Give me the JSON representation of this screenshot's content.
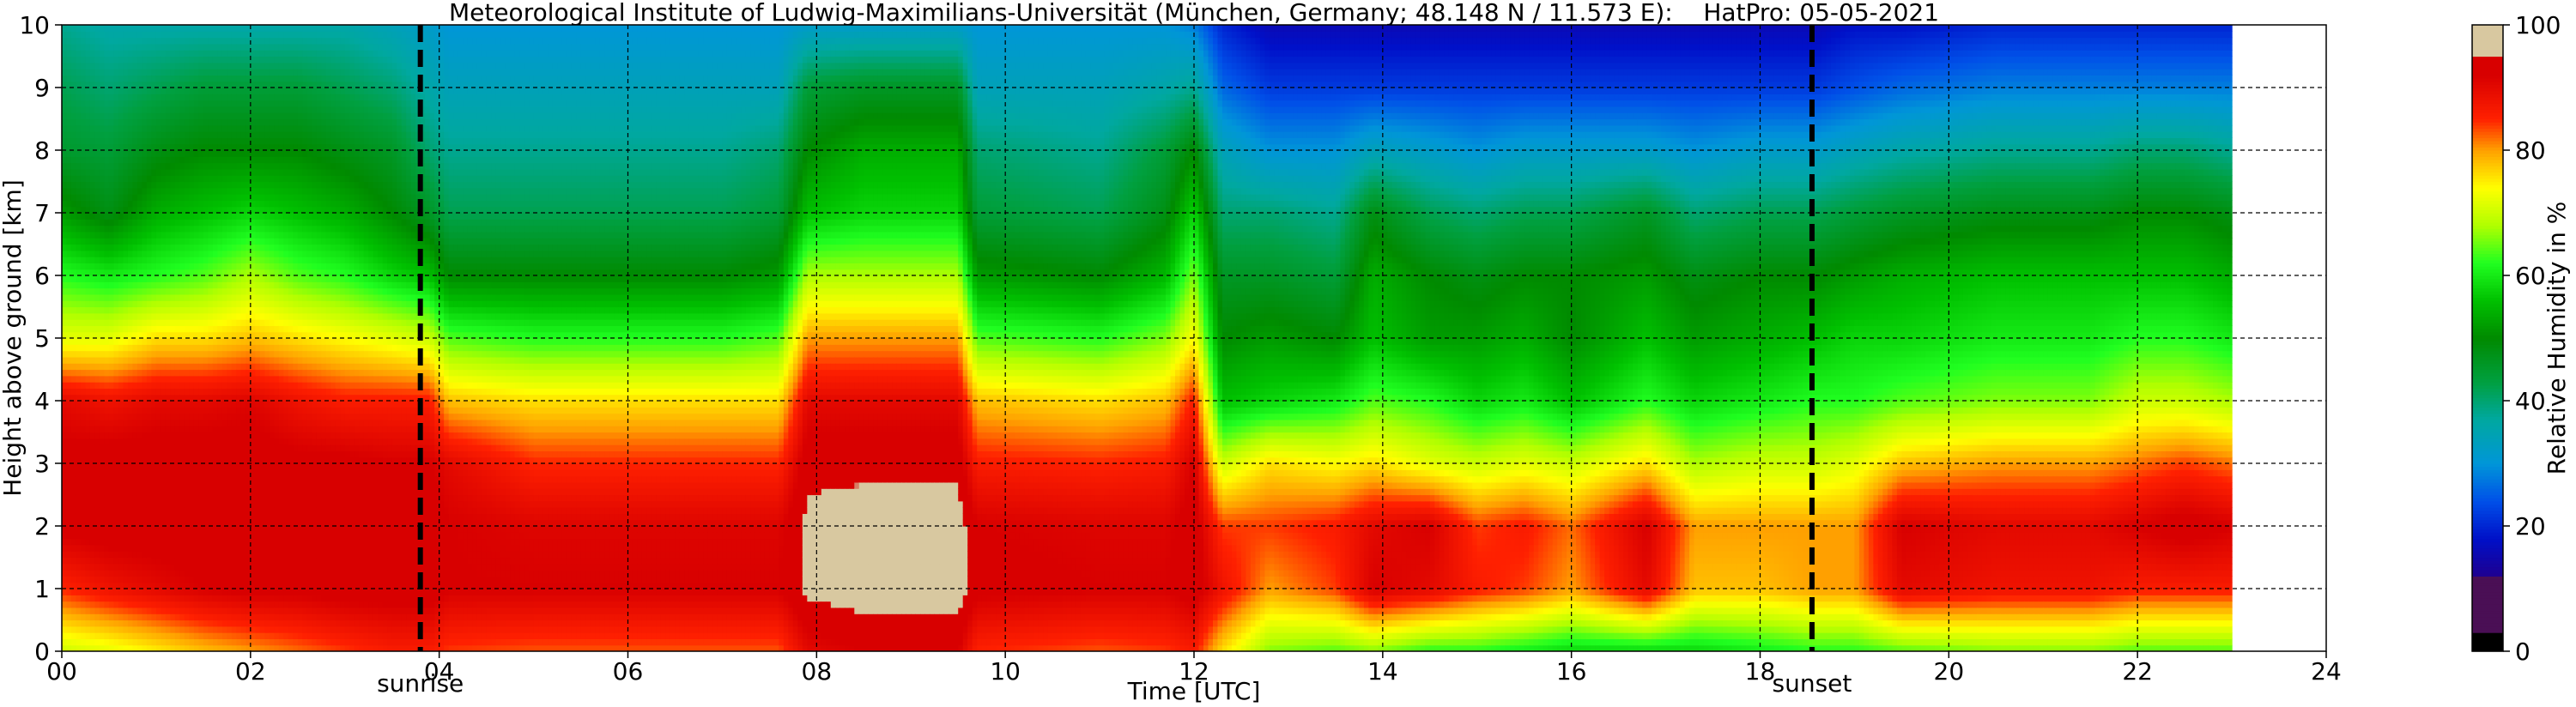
{
  "chart_data": {
    "type": "heatmap",
    "title": "Meteorological Institute of Ludwig-Maximilians-Universität (München, Germany; 48.148 N / 11.573 E):    HatPro: 05-05-2021",
    "xlabel": "Time [UTC]",
    "ylabel": "Height above ground [km]",
    "xlim": [
      0,
      24
    ],
    "ylim": [
      0,
      10
    ],
    "x_ticks": [
      "00",
      "02",
      "04",
      "06",
      "08",
      "10",
      "12",
      "14",
      "16",
      "18",
      "20",
      "22",
      "24"
    ],
    "y_ticks": [
      "0",
      "1",
      "2",
      "3",
      "4",
      "5",
      "6",
      "7",
      "8",
      "9",
      "10"
    ],
    "grid": true,
    "data_end_time": 23.0,
    "markers": [
      {
        "label": "sunrise",
        "time": 3.8
      },
      {
        "label": "sunset",
        "time": 18.55
      }
    ],
    "colorbar": {
      "label": "Relative Humidity in %",
      "ticks": [
        "0",
        "20",
        "40",
        "60",
        "80",
        "100"
      ],
      "range": [
        0,
        100
      ],
      "colors": [
        {
          "v": 0,
          "c": "#000000"
        },
        {
          "v": 3,
          "c": "#000000"
        },
        {
          "v": 3.01,
          "c": "#4a0f55"
        },
        {
          "v": 12,
          "c": "#4a0f55"
        },
        {
          "v": 12.01,
          "c": "#1e0090"
        },
        {
          "v": 18,
          "c": "#0010c8"
        },
        {
          "v": 24,
          "c": "#0050e8"
        },
        {
          "v": 30,
          "c": "#0096d8"
        },
        {
          "v": 37,
          "c": "#00a8a0"
        },
        {
          "v": 43,
          "c": "#00a040"
        },
        {
          "v": 50,
          "c": "#008a00"
        },
        {
          "v": 56,
          "c": "#00c000"
        },
        {
          "v": 62,
          "c": "#20ff20"
        },
        {
          "v": 68,
          "c": "#b0ff00"
        },
        {
          "v": 74,
          "c": "#ffff00"
        },
        {
          "v": 80,
          "c": "#ffa000"
        },
        {
          "v": 85,
          "c": "#ff2000"
        },
        {
          "v": 92,
          "c": "#d80000"
        },
        {
          "v": 95,
          "c": "#d80000"
        },
        {
          "v": 95.01,
          "c": "#d8c8a0"
        },
        {
          "v": 100,
          "c": "#d8c8a0"
        }
      ]
    },
    "time_columns": [
      {
        "t": 0.0,
        "rh": [
          70,
          85,
          93,
          93,
          90,
          72,
          62,
          52,
          45,
          42,
          38
        ]
      },
      {
        "t": 0.5,
        "rh": [
          72,
          88,
          94,
          94,
          88,
          72,
          60,
          48,
          44,
          40,
          36
        ]
      },
      {
        "t": 1.0,
        "rh": [
          75,
          90,
          94,
          94,
          90,
          76,
          62,
          54,
          48,
          42,
          36
        ]
      },
      {
        "t": 1.5,
        "rh": [
          78,
          92,
          94,
          94,
          90,
          76,
          64,
          56,
          50,
          44,
          36
        ]
      },
      {
        "t": 2.0,
        "rh": [
          80,
          93,
          94,
          94,
          91,
          78,
          68,
          58,
          50,
          44,
          36
        ]
      },
      {
        "t": 2.5,
        "rh": [
          82,
          93,
          94,
          93,
          88,
          76,
          64,
          56,
          50,
          44,
          36
        ]
      },
      {
        "t": 3.0,
        "rh": [
          84,
          94,
          95,
          93,
          86,
          74,
          62,
          54,
          48,
          42,
          36
        ]
      },
      {
        "t": 3.5,
        "rh": [
          86,
          94,
          95,
          92,
          86,
          72,
          58,
          50,
          46,
          40,
          34
        ]
      },
      {
        "t": 3.9,
        "rh": [
          86,
          94,
          94,
          92,
          86,
          70,
          56,
          46,
          40,
          36,
          32
        ]
      },
      {
        "t": 4.1,
        "rh": [
          84,
          92,
          92,
          90,
          78,
          64,
          50,
          42,
          38,
          34,
          30
        ]
      },
      {
        "t": 5.0,
        "rh": [
          83,
          92,
          91,
          85,
          76,
          62,
          50,
          42,
          38,
          34,
          30
        ]
      },
      {
        "t": 6.0,
        "rh": [
          83,
          92,
          91,
          85,
          76,
          62,
          50,
          42,
          38,
          34,
          30
        ]
      },
      {
        "t": 7.0,
        "rh": [
          83,
          92,
          91,
          85,
          76,
          62,
          50,
          42,
          38,
          34,
          30
        ]
      },
      {
        "t": 7.6,
        "rh": [
          83,
          92,
          91,
          85,
          76,
          64,
          52,
          44,
          40,
          34,
          30
        ]
      },
      {
        "t": 7.9,
        "rh": [
          90,
          96,
          96,
          94,
          90,
          80,
          68,
          56,
          50,
          44,
          32
        ]
      },
      {
        "t": 8.5,
        "rh": [
          92,
          97,
          97,
          94,
          90,
          80,
          68,
          58,
          54,
          46,
          32
        ]
      },
      {
        "t": 9.5,
        "rh": [
          92,
          97,
          97,
          94,
          90,
          80,
          68,
          58,
          54,
          46,
          32
        ]
      },
      {
        "t": 9.7,
        "rh": [
          85,
          93,
          92,
          86,
          78,
          64,
          52,
          44,
          40,
          34,
          30
        ]
      },
      {
        "t": 11.0,
        "rh": [
          83,
          92,
          91,
          85,
          76,
          62,
          50,
          42,
          38,
          34,
          30
        ]
      },
      {
        "t": 11.7,
        "rh": [
          84,
          92,
          91,
          86,
          78,
          66,
          55,
          48,
          44,
          36,
          30
        ]
      },
      {
        "t": 12.0,
        "rh": [
          86,
          94,
          94,
          92,
          86,
          74,
          66,
          58,
          50,
          38,
          28
        ]
      },
      {
        "t": 12.3,
        "rh": [
          76,
          88,
          84,
          70,
          56,
          50,
          46,
          40,
          34,
          26,
          20
        ]
      },
      {
        "t": 12.8,
        "rh": [
          66,
          80,
          84,
          76,
          58,
          52,
          46,
          40,
          30,
          22,
          16
        ]
      },
      {
        "t": 13.5,
        "rh": [
          64,
          84,
          86,
          74,
          60,
          50,
          44,
          38,
          30,
          22,
          16
        ]
      },
      {
        "t": 13.9,
        "rh": [
          66,
          92,
          90,
          76,
          64,
          56,
          54,
          48,
          34,
          22,
          16
        ]
      },
      {
        "t": 14.5,
        "rh": [
          62,
          90,
          92,
          72,
          62,
          52,
          50,
          42,
          32,
          22,
          16
        ]
      },
      {
        "t": 15.0,
        "rh": [
          62,
          86,
          84,
          70,
          58,
          52,
          48,
          40,
          30,
          22,
          16
        ]
      },
      {
        "t": 15.5,
        "rh": [
          60,
          84,
          86,
          72,
          60,
          54,
          50,
          42,
          32,
          22,
          16
        ]
      },
      {
        "t": 16.0,
        "rh": [
          58,
          80,
          82,
          70,
          56,
          50,
          50,
          42,
          32,
          22,
          16
        ]
      },
      {
        "t": 16.8,
        "rh": [
          58,
          90,
          92,
          76,
          62,
          56,
          52,
          46,
          32,
          22,
          16
        ]
      },
      {
        "t": 17.3,
        "rh": [
          58,
          78,
          80,
          68,
          58,
          52,
          48,
          40,
          30,
          22,
          16
        ]
      },
      {
        "t": 18.0,
        "rh": [
          60,
          78,
          80,
          70,
          60,
          54,
          50,
          42,
          32,
          22,
          16
        ]
      },
      {
        "t": 18.6,
        "rh": [
          62,
          80,
          80,
          70,
          62,
          56,
          50,
          42,
          32,
          22,
          16
        ]
      },
      {
        "t": 19.0,
        "rh": [
          62,
          80,
          80,
          72,
          62,
          58,
          52,
          44,
          34,
          24,
          18
        ]
      },
      {
        "t": 19.5,
        "rh": [
          64,
          90,
          92,
          78,
          64,
          58,
          54,
          46,
          36,
          26,
          18
        ]
      },
      {
        "t": 20.5,
        "rh": [
          66,
          88,
          90,
          80,
          66,
          60,
          56,
          48,
          38,
          28,
          20
        ]
      },
      {
        "t": 21.5,
        "rh": [
          66,
          88,
          90,
          80,
          66,
          60,
          56,
          48,
          38,
          28,
          20
        ]
      },
      {
        "t": 22.0,
        "rh": [
          64,
          86,
          92,
          82,
          70,
          62,
          56,
          50,
          40,
          28,
          20
        ]
      },
      {
        "t": 22.5,
        "rh": [
          64,
          86,
          94,
          84,
          70,
          62,
          56,
          50,
          40,
          28,
          20
        ]
      },
      {
        "t": 23.0,
        "rh": [
          64,
          86,
          92,
          82,
          68,
          60,
          54,
          48,
          38,
          28,
          20
        ]
      }
    ]
  }
}
